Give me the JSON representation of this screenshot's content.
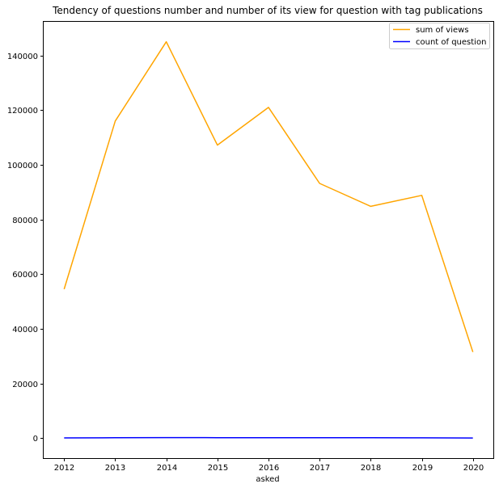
{
  "chart_data": {
    "type": "line",
    "title": "Tendency of questions number and number of its view for question with tag publications",
    "xlabel": "asked",
    "ylabel": "",
    "x": [
      2012,
      2013,
      2014,
      2015,
      2016,
      2017,
      2018,
      2019,
      2020
    ],
    "xlim": [
      2011.6,
      2020.4
    ],
    "ylim": [
      -7300,
      152300
    ],
    "yticks": [
      0,
      20000,
      40000,
      60000,
      80000,
      100000,
      120000,
      140000
    ],
    "grid": false,
    "legend_position": "top-right",
    "series": [
      {
        "name": "sum of views",
        "color": "#ffa500",
        "values": [
          54500,
          116000,
          145000,
          107200,
          121000,
          93200,
          84800,
          88800,
          31500
        ]
      },
      {
        "name": "count of question",
        "color": "#0000ff",
        "values": [
          90,
          160,
          200,
          180,
          170,
          150,
          140,
          130,
          60
        ]
      }
    ]
  }
}
